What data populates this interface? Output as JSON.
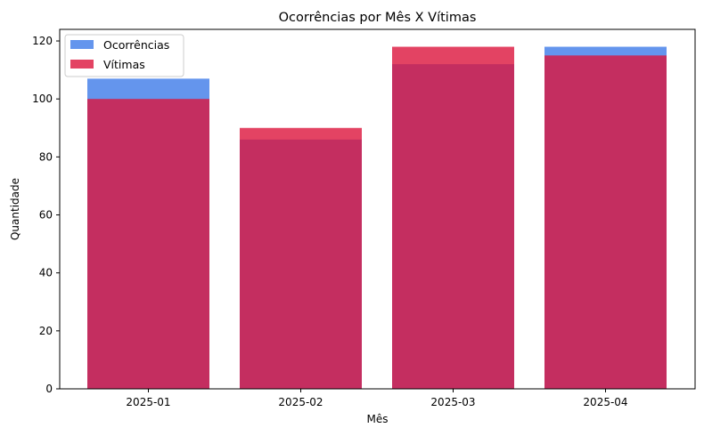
{
  "chart_data": {
    "type": "bar",
    "title": "Ocorrências por Mês X Vítimas",
    "xlabel": "Mês",
    "ylabel": "Quantidade",
    "categories": [
      "2025-01",
      "2025-02",
      "2025-03",
      "2025-04"
    ],
    "series": [
      {
        "name": "Ocorrências",
        "values": [
          107,
          86,
          112,
          118
        ],
        "color": "#6495ED",
        "opacity": 1.0
      },
      {
        "name": "Vítimas",
        "values": [
          100,
          90,
          118,
          115
        ],
        "color": "#DC143C",
        "opacity": 0.8
      }
    ],
    "ylim": [
      0,
      124
    ],
    "yticks": [
      0,
      20,
      40,
      60,
      80,
      100,
      120
    ],
    "overlapping_bars": true,
    "grid": false,
    "legend_position": "top-left"
  }
}
